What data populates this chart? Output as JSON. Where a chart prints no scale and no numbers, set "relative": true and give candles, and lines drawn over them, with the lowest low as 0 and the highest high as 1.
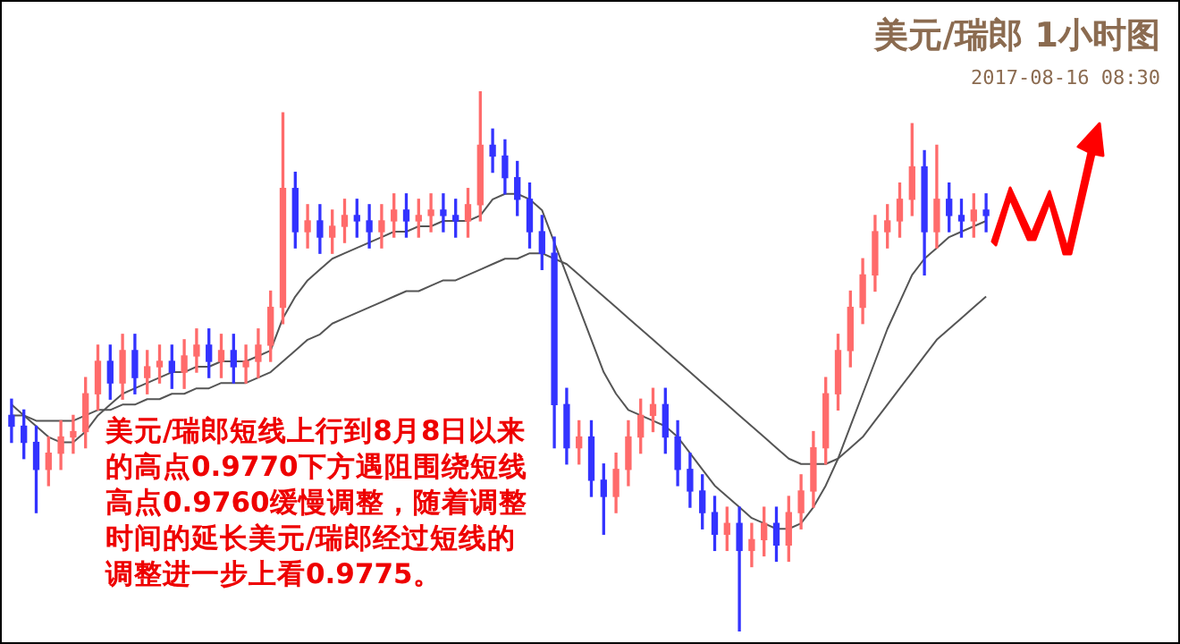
{
  "chart_data": {
    "type": "candlestick",
    "title": "美元/瑞郎 1小时图",
    "subtitle": "2017-08-16 08:30",
    "relative": true,
    "legend": false,
    "annotations": [
      "美元/瑞郎短线上行到8月8日以来的高点0.9770下方遇阻围绕短线高点0.9760缓慢调整，随着调整时间的延长美元/瑞郎经过短线的调整进一步上看0.9775。"
    ],
    "categories": [
      null,
      null,
      null,
      null,
      null,
      null,
      null,
      null,
      null,
      null,
      null,
      null,
      null,
      null,
      null,
      null,
      null,
      null,
      null,
      null,
      null,
      null,
      null,
      null,
      null,
      null,
      null,
      null,
      null,
      null,
      null,
      null,
      null,
      null,
      null,
      null,
      null,
      null,
      null,
      null,
      null,
      null,
      null,
      null,
      null,
      null,
      null,
      null,
      null,
      null,
      null,
      null,
      null,
      null,
      null,
      null,
      null,
      null,
      null,
      null,
      null,
      null,
      null,
      null,
      null,
      null,
      null,
      null,
      null,
      null,
      null,
      null,
      null,
      null,
      null,
      null,
      null,
      null,
      null,
      null
    ],
    "ohlc": [
      [
        0.4,
        0.43,
        0.35,
        0.38
      ],
      [
        0.38,
        0.41,
        0.32,
        0.35
      ],
      [
        0.35,
        0.38,
        0.22,
        0.3
      ],
      [
        0.3,
        0.36,
        0.27,
        0.33
      ],
      [
        0.33,
        0.39,
        0.3,
        0.36
      ],
      [
        0.36,
        0.4,
        0.33,
        0.37
      ],
      [
        0.37,
        0.47,
        0.34,
        0.44
      ],
      [
        0.44,
        0.53,
        0.41,
        0.5
      ],
      [
        0.5,
        0.53,
        0.43,
        0.46
      ],
      [
        0.46,
        0.55,
        0.43,
        0.52
      ],
      [
        0.52,
        0.55,
        0.44,
        0.47
      ],
      [
        0.47,
        0.52,
        0.44,
        0.49
      ],
      [
        0.49,
        0.53,
        0.46,
        0.5
      ],
      [
        0.5,
        0.53,
        0.45,
        0.48
      ],
      [
        0.48,
        0.54,
        0.45,
        0.51
      ],
      [
        0.51,
        0.56,
        0.48,
        0.53
      ],
      [
        0.53,
        0.56,
        0.47,
        0.5
      ],
      [
        0.5,
        0.55,
        0.47,
        0.52
      ],
      [
        0.52,
        0.55,
        0.46,
        0.49
      ],
      [
        0.49,
        0.53,
        0.46,
        0.5
      ],
      [
        0.5,
        0.56,
        0.47,
        0.53
      ],
      [
        0.53,
        0.63,
        0.5,
        0.6
      ],
      [
        0.6,
        0.96,
        0.57,
        0.82
      ],
      [
        0.82,
        0.85,
        0.71,
        0.74
      ],
      [
        0.74,
        0.79,
        0.71,
        0.76
      ],
      [
        0.76,
        0.79,
        0.7,
        0.73
      ],
      [
        0.73,
        0.78,
        0.7,
        0.75
      ],
      [
        0.75,
        0.8,
        0.72,
        0.77
      ],
      [
        0.77,
        0.8,
        0.73,
        0.76
      ],
      [
        0.76,
        0.79,
        0.71,
        0.74
      ],
      [
        0.74,
        0.79,
        0.71,
        0.76
      ],
      [
        0.76,
        0.81,
        0.73,
        0.78
      ],
      [
        0.78,
        0.81,
        0.73,
        0.76
      ],
      [
        0.76,
        0.8,
        0.73,
        0.77
      ],
      [
        0.77,
        0.81,
        0.74,
        0.78
      ],
      [
        0.78,
        0.81,
        0.74,
        0.77
      ],
      [
        0.77,
        0.8,
        0.73,
        0.76
      ],
      [
        0.76,
        0.82,
        0.73,
        0.79
      ],
      [
        0.79,
        1.0,
        0.76,
        0.9
      ],
      [
        0.9,
        0.93,
        0.85,
        0.88
      ],
      [
        0.88,
        0.91,
        0.81,
        0.84
      ],
      [
        0.84,
        0.87,
        0.77,
        0.8
      ],
      [
        0.8,
        0.83,
        0.71,
        0.74
      ],
      [
        0.74,
        0.77,
        0.67,
        0.7
      ],
      [
        0.7,
        0.73,
        0.34,
        0.42
      ],
      [
        0.42,
        0.45,
        0.31,
        0.34
      ],
      [
        0.34,
        0.39,
        0.31,
        0.36
      ],
      [
        0.36,
        0.39,
        0.25,
        0.28
      ],
      [
        0.28,
        0.31,
        0.18,
        0.25
      ],
      [
        0.25,
        0.33,
        0.22,
        0.3
      ],
      [
        0.3,
        0.39,
        0.27,
        0.36
      ],
      [
        0.36,
        0.43,
        0.33,
        0.4
      ],
      [
        0.4,
        0.45,
        0.37,
        0.42
      ],
      [
        0.42,
        0.45,
        0.33,
        0.36
      ],
      [
        0.36,
        0.39,
        0.27,
        0.3
      ],
      [
        0.3,
        0.33,
        0.23,
        0.26
      ],
      [
        0.26,
        0.29,
        0.19,
        0.22
      ],
      [
        0.22,
        0.25,
        0.15,
        0.18
      ],
      [
        0.18,
        0.23,
        0.15,
        0.2
      ],
      [
        0.2,
        0.23,
        0.0,
        0.15
      ],
      [
        0.15,
        0.2,
        0.12,
        0.17
      ],
      [
        0.17,
        0.23,
        0.14,
        0.2
      ],
      [
        0.2,
        0.23,
        0.13,
        0.16
      ],
      [
        0.16,
        0.25,
        0.13,
        0.22
      ],
      [
        0.22,
        0.29,
        0.19,
        0.26
      ],
      [
        0.26,
        0.37,
        0.23,
        0.34
      ],
      [
        0.34,
        0.47,
        0.31,
        0.44
      ],
      [
        0.44,
        0.55,
        0.41,
        0.52
      ],
      [
        0.52,
        0.63,
        0.49,
        0.6
      ],
      [
        0.6,
        0.69,
        0.57,
        0.66
      ],
      [
        0.66,
        0.77,
        0.63,
        0.74
      ],
      [
        0.74,
        0.79,
        0.71,
        0.76
      ],
      [
        0.76,
        0.83,
        0.73,
        0.8
      ],
      [
        0.8,
        0.94,
        0.77,
        0.86
      ],
      [
        0.86,
        0.89,
        0.66,
        0.74
      ],
      [
        0.74,
        0.9,
        0.71,
        0.8
      ],
      [
        0.8,
        0.83,
        0.74,
        0.77
      ],
      [
        0.77,
        0.8,
        0.73,
        0.76
      ],
      [
        0.76,
        0.81,
        0.73,
        0.78
      ],
      [
        0.78,
        0.81,
        0.74,
        0.77
      ]
    ],
    "colors": [
      "#3333ff",
      "#3333ff",
      "#3333ff",
      "#ff6b6b",
      "#ff6b6b",
      "#ff6b6b",
      "#ff6b6b",
      "#ff6b6b",
      "#3333ff",
      "#ff6b6b",
      "#3333ff",
      "#ff6b6b",
      "#ff6b6b",
      "#3333ff",
      "#ff6b6b",
      "#ff6b6b",
      "#3333ff",
      "#ff6b6b",
      "#3333ff",
      "#ff6b6b",
      "#ff6b6b",
      "#ff6b6b",
      "#ff6b6b",
      "#3333ff",
      "#ff6b6b",
      "#3333ff",
      "#ff6b6b",
      "#ff6b6b",
      "#3333ff",
      "#3333ff",
      "#ff6b6b",
      "#ff6b6b",
      "#3333ff",
      "#ff6b6b",
      "#ff6b6b",
      "#3333ff",
      "#3333ff",
      "#ff6b6b",
      "#ff6b6b",
      "#3333ff",
      "#3333ff",
      "#3333ff",
      "#3333ff",
      "#3333ff",
      "#3333ff",
      "#3333ff",
      "#ff6b6b",
      "#3333ff",
      "#3333ff",
      "#ff6b6b",
      "#ff6b6b",
      "#ff6b6b",
      "#ff6b6b",
      "#3333ff",
      "#3333ff",
      "#3333ff",
      "#3333ff",
      "#3333ff",
      "#ff6b6b",
      "#3333ff",
      "#ff6b6b",
      "#ff6b6b",
      "#3333ff",
      "#ff6b6b",
      "#ff6b6b",
      "#ff6b6b",
      "#ff6b6b",
      "#ff6b6b",
      "#ff6b6b",
      "#ff6b6b",
      "#ff6b6b",
      "#ff6b6b",
      "#ff6b6b",
      "#ff6b6b",
      "#3333ff",
      "#ff6b6b",
      "#3333ff",
      "#3333ff",
      "#ff6b6b",
      "#3333ff"
    ],
    "series": [
      {
        "type": "line",
        "color": "#555555",
        "values": [
          0.42,
          0.4,
          0.38,
          0.36,
          0.35,
          0.35,
          0.37,
          0.4,
          0.42,
          0.44,
          0.45,
          0.46,
          0.47,
          0.48,
          0.48,
          0.49,
          0.49,
          0.5,
          0.5,
          0.5,
          0.51,
          0.52,
          0.58,
          0.62,
          0.65,
          0.67,
          0.69,
          0.7,
          0.71,
          0.72,
          0.73,
          0.74,
          0.74,
          0.75,
          0.75,
          0.76,
          0.76,
          0.76,
          0.77,
          0.8,
          0.81,
          0.81,
          0.8,
          0.78,
          0.72,
          0.66,
          0.6,
          0.54,
          0.48,
          0.44,
          0.41,
          0.4,
          0.39,
          0.38,
          0.36,
          0.33,
          0.3,
          0.27,
          0.25,
          0.23,
          0.21,
          0.2,
          0.19,
          0.19,
          0.2,
          0.23,
          0.27,
          0.32,
          0.38,
          0.44,
          0.5,
          0.56,
          0.61,
          0.66,
          0.69,
          0.71,
          0.73,
          0.74,
          0.75,
          0.76
        ]
      },
      {
        "type": "line",
        "color": "#555555",
        "values": [
          0.4,
          0.4,
          0.39,
          0.39,
          0.39,
          0.39,
          0.4,
          0.41,
          0.41,
          0.42,
          0.42,
          0.43,
          0.43,
          0.44,
          0.44,
          0.45,
          0.45,
          0.46,
          0.46,
          0.46,
          0.47,
          0.48,
          0.5,
          0.52,
          0.54,
          0.55,
          0.57,
          0.58,
          0.59,
          0.6,
          0.61,
          0.62,
          0.63,
          0.63,
          0.64,
          0.65,
          0.65,
          0.66,
          0.67,
          0.68,
          0.69,
          0.69,
          0.7,
          0.7,
          0.69,
          0.68,
          0.66,
          0.64,
          0.62,
          0.6,
          0.58,
          0.56,
          0.54,
          0.52,
          0.5,
          0.48,
          0.46,
          0.44,
          0.42,
          0.4,
          0.38,
          0.36,
          0.34,
          0.32,
          0.31,
          0.31,
          0.31,
          0.32,
          0.34,
          0.36,
          0.39,
          0.42,
          0.45,
          0.48,
          0.51,
          0.54,
          0.56,
          0.58,
          0.6,
          0.62
        ]
      }
    ]
  }
}
